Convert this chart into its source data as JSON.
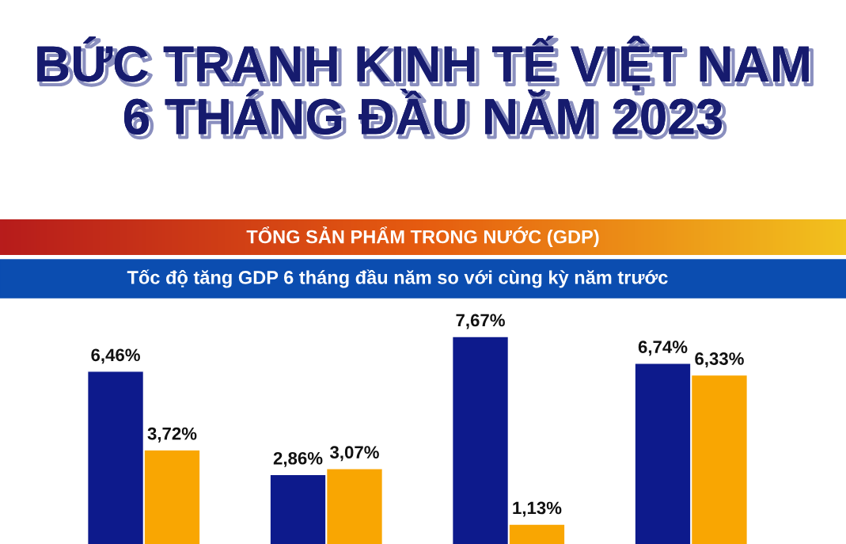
{
  "chart_data": {
    "type": "bar",
    "title": "BỨC TRANH KINH TẾ VIỆT NAM\n6 THÁNG ĐẦU NĂM 2023",
    "subtitle": "TỔNG SẢN PHẨM TRONG NƯỚC (GDP)",
    "annotations": [
      "Tốc độ tăng GDP 6 tháng đầu năm so với cùng kỳ năm trước"
    ],
    "categories": [
      null,
      null,
      null,
      null
    ],
    "series": [
      {
        "color": "#0d1a8c",
        "values": [
          6.46,
          2.86,
          7.67,
          6.74
        ],
        "value_labels": [
          "6,46%",
          "2,86%",
          "7,67%",
          "6,74%"
        ]
      },
      {
        "color": "#f9a602",
        "values": [
          3.72,
          3.07,
          1.13,
          6.33
        ],
        "value_labels": [
          "3,72%",
          "3,07%",
          "1,13%",
          "6,33%"
        ]
      }
    ],
    "legend": false
  }
}
